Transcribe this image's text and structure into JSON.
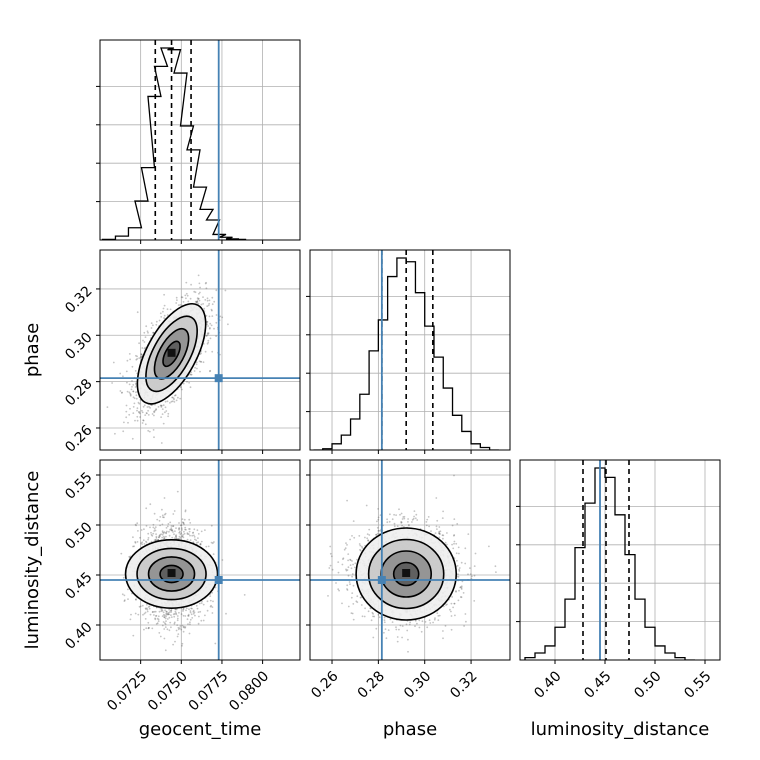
{
  "chart_data": {
    "type": "corner",
    "parameters": [
      {
        "name": "geocent_time",
        "label": "geocent_time",
        "range": [
          0.07,
          0.0823
        ],
        "ticks": [
          0.0725,
          0.075,
          0.0775,
          0.08
        ],
        "tick_labels": [
          "0.0725",
          "0.0750",
          "0.0775",
          "0.0800"
        ],
        "truth": 0.0773,
        "quantiles": [
          0.0734,
          0.0744,
          0.0756
        ]
      },
      {
        "name": "phase",
        "label": "phase",
        "range": [
          0.2505,
          0.3368
        ],
        "ticks": [
          0.26,
          0.28,
          0.3,
          0.32
        ],
        "tick_labels": [
          "0.26",
          "0.28",
          "0.30",
          "0.32"
        ],
        "truth": 0.2815,
        "quantiles": [
          0.2815,
          0.292,
          0.3035
        ]
      },
      {
        "name": "luminosity_distance",
        "label": "luminosity_distance",
        "range": [
          0.365,
          0.565
        ],
        "ticks": [
          0.4,
          0.45,
          0.5,
          0.55
        ],
        "tick_labels": [
          "0.40",
          "0.45",
          "0.50",
          "0.55"
        ],
        "truth": 0.445,
        "quantiles": [
          0.428,
          0.451,
          0.474
        ]
      }
    ],
    "histograms": [
      {
        "parameter": "geocent_time",
        "bin_centers": [
          0.07055,
          0.07135,
          0.07215,
          0.07255,
          0.07295,
          0.07335,
          0.07375,
          0.07415,
          0.07455,
          0.07495,
          0.07535,
          0.07575,
          0.07615,
          0.07655,
          0.07695,
          0.07735,
          0.07775,
          0.07815,
          0.07855
        ],
        "counts": [
          1,
          7,
          22,
          70,
          130,
          258,
          312,
          345,
          342,
          300,
          205,
          162,
          95,
          55,
          36,
          10,
          5,
          2,
          1
        ]
      },
      {
        "parameter": "phase",
        "bin_centers": [
          0.254,
          0.258,
          0.262,
          0.266,
          0.27,
          0.274,
          0.278,
          0.282,
          0.286,
          0.29,
          0.294,
          0.298,
          0.302,
          0.306,
          0.31,
          0.314,
          0.318,
          0.322,
          0.326,
          0.33
        ],
        "counts": [
          0,
          1,
          5,
          12,
          25,
          45,
          80,
          105,
          140,
          155,
          152,
          127,
          100,
          75,
          50,
          28,
          15,
          5,
          2,
          0
        ]
      },
      {
        "parameter": "luminosity_distance",
        "bin_centers": [
          0.375,
          0.385,
          0.395,
          0.405,
          0.415,
          0.425,
          0.435,
          0.445,
          0.455,
          0.465,
          0.475,
          0.485,
          0.495,
          0.505,
          0.515,
          0.525,
          0.535
        ],
        "counts": [
          1,
          3,
          6,
          14,
          26,
          48,
          67,
          82,
          78,
          62,
          45,
          26,
          14,
          6,
          3,
          1,
          0
        ]
      }
    ],
    "pairs": [
      {
        "x": "geocent_time",
        "y": "phase",
        "center": [
          0.0744,
          0.292
        ],
        "spread": [
          0.00105,
          0.0108
        ],
        "correlation": 0.6
      },
      {
        "x": "geocent_time",
        "y": "luminosity_distance",
        "center": [
          0.0744,
          0.451
        ],
        "spread": [
          0.00105,
          0.023
        ],
        "correlation": 0.0
      },
      {
        "x": "phase",
        "y": "luminosity_distance",
        "center": [
          0.292,
          0.451
        ],
        "spread": [
          0.0108,
          0.023
        ],
        "correlation": 0.0
      }
    ],
    "contour_levels_sigma": [
      0.5,
      1.0,
      1.5,
      2.0
    ],
    "truth_color": "#4682b4",
    "hist_color": "#000000",
    "quantile_line_style": "dashed",
    "grid": true,
    "legend": "none"
  }
}
